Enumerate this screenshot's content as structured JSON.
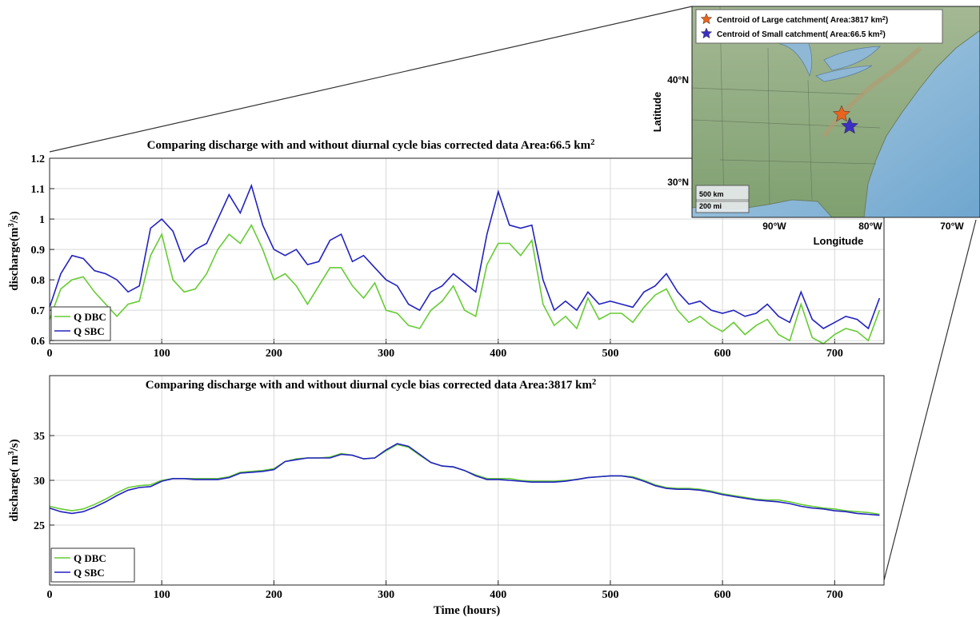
{
  "chart_data": [
    {
      "type": "line",
      "title": "Comparing discharge with and without diurnal cycle bias corrected data Area:66.5 km",
      "title_superscript": "2",
      "ylabel": "discharge(m",
      "ylabel_superscript": "3",
      "ylabel_suffix": "/s)",
      "x": [
        0,
        10,
        20,
        30,
        40,
        50,
        60,
        70,
        80,
        90,
        100,
        110,
        120,
        130,
        140,
        150,
        160,
        170,
        180,
        190,
        200,
        210,
        220,
        230,
        240,
        250,
        260,
        270,
        280,
        290,
        300,
        310,
        320,
        330,
        340,
        350,
        360,
        370,
        380,
        390,
        400,
        410,
        420,
        430,
        440,
        450,
        460,
        470,
        480,
        490,
        500,
        510,
        520,
        530,
        540,
        550,
        560,
        570,
        580,
        590,
        600,
        610,
        620,
        630,
        640,
        650,
        660,
        670,
        680,
        690,
        700,
        710,
        720,
        730,
        740
      ],
      "series": [
        {
          "name": "Q DBC",
          "color": "#66cc33",
          "values": [
            0.67,
            0.77,
            0.8,
            0.81,
            0.76,
            0.72,
            0.68,
            0.72,
            0.73,
            0.88,
            0.95,
            0.8,
            0.76,
            0.77,
            0.82,
            0.9,
            0.95,
            0.92,
            0.98,
            0.9,
            0.8,
            0.82,
            0.78,
            0.72,
            0.78,
            0.84,
            0.84,
            0.78,
            0.74,
            0.79,
            0.7,
            0.69,
            0.65,
            0.64,
            0.7,
            0.73,
            0.78,
            0.7,
            0.68,
            0.85,
            0.92,
            0.92,
            0.88,
            0.93,
            0.72,
            0.65,
            0.68,
            0.64,
            0.74,
            0.67,
            0.69,
            0.69,
            0.66,
            0.71,
            0.75,
            0.77,
            0.7,
            0.66,
            0.68,
            0.65,
            0.63,
            0.66,
            0.62,
            0.65,
            0.67,
            0.62,
            0.6,
            0.72,
            0.61,
            0.59,
            0.62,
            0.64,
            0.63,
            0.6,
            0.7
          ]
        },
        {
          "name": "Q SBC",
          "color": "#2222c0",
          "values": [
            0.71,
            0.82,
            0.88,
            0.87,
            0.83,
            0.82,
            0.8,
            0.76,
            0.78,
            0.97,
            1.0,
            0.96,
            0.86,
            0.9,
            0.92,
            1.0,
            1.08,
            1.02,
            1.11,
            0.98,
            0.9,
            0.88,
            0.9,
            0.85,
            0.86,
            0.93,
            0.95,
            0.86,
            0.88,
            0.84,
            0.8,
            0.78,
            0.72,
            0.7,
            0.76,
            0.78,
            0.82,
            0.79,
            0.76,
            0.95,
            1.09,
            0.98,
            0.97,
            0.98,
            0.8,
            0.7,
            0.73,
            0.7,
            0.76,
            0.72,
            0.73,
            0.72,
            0.71,
            0.76,
            0.78,
            0.82,
            0.76,
            0.72,
            0.73,
            0.7,
            0.69,
            0.7,
            0.68,
            0.69,
            0.72,
            0.68,
            0.66,
            0.76,
            0.67,
            0.64,
            0.66,
            0.68,
            0.67,
            0.64,
            0.74
          ]
        }
      ],
      "xlim": [
        0,
        744
      ],
      "ylim": [
        0.59,
        1.2
      ],
      "xticks": [
        0,
        100,
        200,
        300,
        400,
        500,
        600,
        700
      ],
      "yticks": [
        0.6,
        0.7,
        0.8,
        0.9,
        1,
        1.1,
        1.2
      ],
      "grid": true,
      "legend": "lower left"
    },
    {
      "type": "line",
      "title": "Comparing discharge with and without diurnal cycle bias corrected data Area:3817 km",
      "title_superscript": "2",
      "ylabel": "discharge( m",
      "ylabel_superscript": "3",
      "ylabel_suffix": "/s)",
      "xlabel": "Time (hours)",
      "x": [
        0,
        10,
        20,
        30,
        40,
        50,
        60,
        70,
        80,
        90,
        100,
        110,
        120,
        130,
        140,
        150,
        160,
        170,
        180,
        190,
        200,
        210,
        220,
        230,
        240,
        250,
        260,
        270,
        280,
        290,
        300,
        310,
        320,
        330,
        340,
        350,
        360,
        370,
        380,
        390,
        400,
        410,
        420,
        430,
        440,
        450,
        460,
        470,
        480,
        490,
        500,
        510,
        520,
        530,
        540,
        550,
        560,
        570,
        580,
        590,
        600,
        610,
        620,
        630,
        640,
        650,
        660,
        670,
        680,
        690,
        700,
        710,
        720,
        730,
        740
      ],
      "series": [
        {
          "name": "Q DBC",
          "color": "#66cc33",
          "values": [
            27.1,
            26.8,
            26.6,
            26.8,
            27.3,
            27.9,
            28.6,
            29.2,
            29.4,
            29.5,
            30.0,
            30.2,
            30.2,
            30.2,
            30.2,
            30.2,
            30.4,
            30.9,
            31.0,
            31.1,
            31.3,
            32.1,
            32.4,
            32.5,
            32.5,
            32.6,
            33.0,
            32.8,
            32.4,
            32.5,
            33.3,
            34.0,
            33.7,
            32.8,
            32.0,
            31.6,
            31.5,
            31.1,
            30.6,
            30.2,
            30.2,
            30.2,
            30.0,
            29.9,
            29.9,
            29.9,
            30.0,
            30.1,
            30.3,
            30.4,
            30.5,
            30.5,
            30.4,
            30.0,
            29.5,
            29.2,
            29.1,
            29.1,
            29.0,
            28.8,
            28.5,
            28.3,
            28.1,
            27.9,
            27.8,
            27.8,
            27.6,
            27.3,
            27.1,
            26.9,
            26.8,
            26.6,
            26.5,
            26.4,
            26.2
          ]
        },
        {
          "name": "Q SBC",
          "color": "#2222c0",
          "values": [
            26.9,
            26.5,
            26.3,
            26.5,
            27.0,
            27.6,
            28.3,
            28.9,
            29.2,
            29.3,
            29.9,
            30.2,
            30.2,
            30.1,
            30.1,
            30.1,
            30.3,
            30.8,
            30.9,
            31.0,
            31.2,
            32.1,
            32.3,
            32.5,
            32.5,
            32.5,
            32.9,
            32.8,
            32.4,
            32.5,
            33.4,
            34.1,
            33.8,
            32.9,
            32.0,
            31.6,
            31.5,
            31.1,
            30.5,
            30.1,
            30.1,
            30.0,
            29.9,
            29.8,
            29.8,
            29.8,
            29.9,
            30.1,
            30.3,
            30.4,
            30.5,
            30.5,
            30.3,
            29.9,
            29.4,
            29.1,
            29.0,
            29.0,
            28.9,
            28.7,
            28.4,
            28.2,
            28.0,
            27.8,
            27.7,
            27.6,
            27.4,
            27.1,
            26.9,
            26.8,
            26.6,
            26.5,
            26.3,
            26.2,
            26.1
          ]
        }
      ],
      "xlim": [
        0,
        744
      ],
      "ylim": [
        18.3,
        41.7
      ],
      "xticks": [
        0,
        100,
        200,
        300,
        400,
        500,
        600,
        700
      ],
      "yticks": [
        25,
        30,
        35
      ],
      "grid": true,
      "legend": "lower left"
    }
  ],
  "map": {
    "legend": [
      {
        "label": "Centroid of Large catchment( Area:3817 km",
        "sup": "2",
        "suffix": ")",
        "color": "#e8641e"
      },
      {
        "label": "Centroid of Small catchment( Area:66.5 km",
        "sup": "2",
        "suffix": ")",
        "color": "#3a2fc0"
      }
    ],
    "lat_ticks": [
      "40°N",
      "30°N"
    ],
    "lon_ticks": [
      "90°W",
      "80°W",
      "70°W"
    ],
    "xlabel": "Longitude",
    "ylabel": "Latitude",
    "scale": [
      "500 km",
      "200 mi"
    ]
  }
}
